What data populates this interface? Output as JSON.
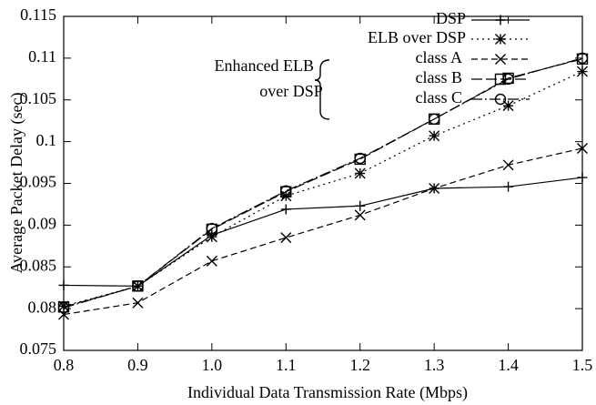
{
  "chart_data": {
    "type": "line",
    "x_label": "Individual Data Transmission Rate (Mbps)",
    "y_label": "Average Packet Delay (sec)",
    "x": [
      0.8,
      0.9,
      1,
      1.1,
      1.2,
      1.3,
      1.4,
      1.5
    ],
    "xlim": [
      0.8,
      1.5
    ],
    "xticks": [
      0.8,
      0.9,
      {
        "value": 1,
        "label": "1.0"
      },
      1.1,
      1.2,
      1.3,
      1.4,
      1.5
    ],
    "ylim": [
      0.075,
      0.115
    ],
    "yticks": [
      0.075,
      0.08,
      0.085,
      0.09,
      0.095,
      0.1,
      0.105,
      0.11,
      0.115
    ],
    "legend_group": [
      "Enhanced ELB",
      "over DSP"
    ],
    "series": [
      {
        "name": "DSP",
        "color": "#000000",
        "marker": "plus",
        "dash": "solid",
        "values": [
          0.0828,
          0.0827,
          0.0888,
          0.0919,
          0.0923,
          0.0944,
          0.0946,
          0.0957
        ]
      },
      {
        "name": "ELB over DSP",
        "color": "#000000",
        "marker": "star",
        "dash": "dotted",
        "values": [
          0.0803,
          0.0827,
          0.0886,
          0.0935,
          0.0962,
          0.1007,
          0.1043,
          0.1084
        ]
      },
      {
        "name": "class A",
        "color": "#000000",
        "marker": "cross",
        "dash": "dashed",
        "values": [
          0.0793,
          0.0807,
          0.0857,
          0.0885,
          0.0912,
          0.0944,
          0.0972,
          0.0992
        ]
      },
      {
        "name": "class B",
        "color": "#000000",
        "marker": "square",
        "dash": "longdash",
        "values": [
          0.0802,
          0.0827,
          0.0895,
          0.094,
          0.0979,
          0.1027,
          0.1076,
          0.1099
        ]
      },
      {
        "name": "class C",
        "color": "#000000",
        "marker": "circle",
        "dash": "dashdot",
        "values": [
          0.0801,
          0.0827,
          0.0896,
          0.0941,
          0.098,
          0.1027,
          0.1075,
          0.11
        ]
      }
    ]
  }
}
